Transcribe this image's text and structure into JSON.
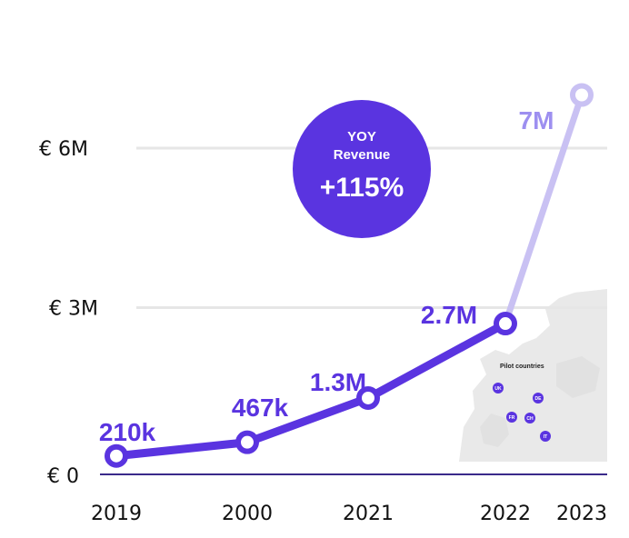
{
  "chart_data": {
    "type": "line",
    "categories": [
      "2019",
      "2000",
      "2021",
      "2022",
      "2023"
    ],
    "series": [
      {
        "values": [
          210000,
          467000,
          1300000,
          2700000,
          7000000
        ],
        "data_labels": [
          "210k",
          "467k",
          "1.3M",
          "2.7M",
          "7M"
        ],
        "projected_from_index": 3
      }
    ],
    "y_ticks": [
      {
        "value": 0,
        "label": "€ 0"
      },
      {
        "value": 3000000,
        "label": "€ 3M"
      },
      {
        "value": 6000000,
        "label": "€ 6M"
      }
    ],
    "ylim": [
      0,
      7000000
    ],
    "grid": true,
    "colors": {
      "line": "#5a34e0",
      "projected": "#c9c1f3",
      "label": "#5a34e0",
      "projected_label": "#9d8ff0",
      "badge": "#5a34e0",
      "grid": "#e6e6e6",
      "map": "#e9e9e9"
    },
    "annotation": {
      "line1": "YOY",
      "line2": "Revenue",
      "value": "+115%"
    },
    "inset_map": {
      "title": "Pilot countries",
      "countries": [
        "UK",
        "DE",
        "FR",
        "CH",
        "IT"
      ]
    }
  }
}
